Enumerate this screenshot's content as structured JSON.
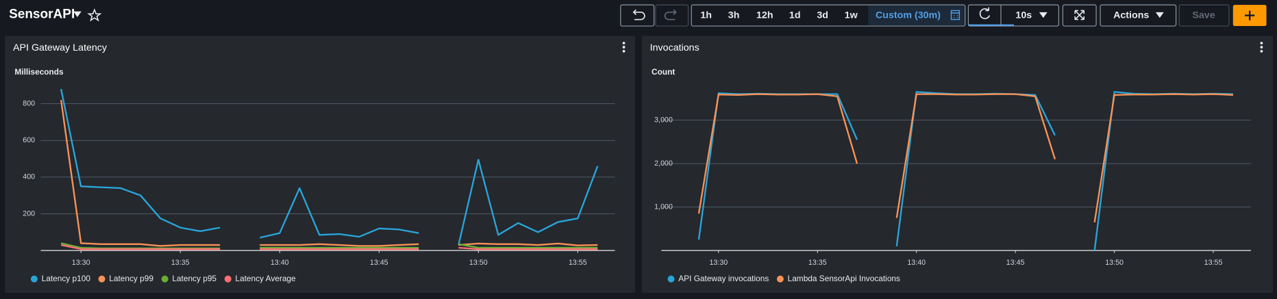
{
  "header": {
    "title": "SensorAPI",
    "time_ranges": [
      "1h",
      "3h",
      "12h",
      "1d",
      "3d",
      "1w",
      "Custom (30m)"
    ],
    "refresh_interval": "10s",
    "actions": "Actions",
    "save": "Save"
  },
  "chart_data": [
    {
      "type": "line",
      "title": "API Gateway Latency",
      "y_label": "Milliseconds",
      "categories": [
        null,
        "13:30",
        null,
        null,
        null,
        null,
        "13:35",
        null,
        null,
        null,
        null,
        "13:40",
        null,
        null,
        null,
        null,
        "13:45",
        null,
        null,
        null,
        null,
        "13:50",
        null,
        null,
        null,
        null,
        "13:55",
        null
      ],
      "series": [
        {
          "name": "Latency p100",
          "color": "#29a4d9",
          "values": [
            880,
            350,
            345,
            340,
            300,
            175,
            125,
            105,
            125,
            null,
            70,
            95,
            340,
            85,
            90,
            75,
            120,
            115,
            95,
            null,
            30,
            495,
            85,
            150,
            100,
            155,
            175,
            460
          ]
        },
        {
          "name": "Latency p99",
          "color": "#f89256",
          "values": [
            820,
            40,
            35,
            35,
            35,
            25,
            30,
            30,
            30,
            null,
            30,
            30,
            30,
            35,
            30,
            25,
            25,
            30,
            35,
            null,
            30,
            38,
            35,
            35,
            30,
            38,
            28,
            30
          ]
        },
        {
          "name": "Latency p95",
          "color": "#69ae34",
          "values": [
            40,
            15,
            12,
            12,
            12,
            12,
            12,
            12,
            12,
            null,
            15,
            15,
            15,
            15,
            15,
            15,
            15,
            15,
            15,
            null,
            35,
            15,
            15,
            15,
            15,
            15,
            15,
            15
          ]
        },
        {
          "name": "Latency Average",
          "color": "#fe6e73",
          "values": [
            30,
            8,
            8,
            8,
            8,
            8,
            8,
            8,
            8,
            null,
            8,
            8,
            8,
            8,
            8,
            8,
            8,
            8,
            8,
            null,
            15,
            8,
            8,
            8,
            8,
            8,
            8,
            8
          ]
        }
      ],
      "ylim": [
        0,
        900
      ],
      "yticks": [
        200,
        400,
        600,
        800
      ],
      "grid": true
    },
    {
      "type": "line",
      "title": "Invocations",
      "y_label": "Count",
      "categories": [
        null,
        "13:30",
        null,
        null,
        null,
        null,
        "13:35",
        null,
        null,
        null,
        null,
        "13:40",
        null,
        null,
        null,
        null,
        "13:45",
        null,
        null,
        null,
        null,
        "13:50",
        null,
        null,
        null,
        null,
        "13:55",
        null
      ],
      "series": [
        {
          "name": "API Gateway invocations",
          "color": "#29a4d9",
          "values": [
            250,
            3620,
            3600,
            3610,
            3600,
            3600,
            3600,
            3600,
            2550,
            null,
            100,
            3650,
            3620,
            3600,
            3600,
            3610,
            3600,
            3580,
            2650,
            null,
            0,
            3650,
            3610,
            3600,
            3610,
            3600,
            3610,
            3600
          ]
        },
        {
          "name": "Lambda SensorApi Invocations",
          "color": "#f89256",
          "values": [
            850,
            3590,
            3580,
            3600,
            3590,
            3590,
            3600,
            3550,
            2000,
            null,
            750,
            3600,
            3600,
            3590,
            3590,
            3600,
            3600,
            3550,
            2100,
            null,
            650,
            3580,
            3590,
            3590,
            3600,
            3590,
            3600,
            3580
          ]
        }
      ],
      "ylim": [
        0,
        3800
      ],
      "yticks": [
        {
          "value": 1000,
          "label": "1,000"
        },
        {
          "value": 2000,
          "label": "2,000"
        },
        {
          "value": 3000,
          "label": "3,000"
        }
      ],
      "grid": true
    }
  ]
}
